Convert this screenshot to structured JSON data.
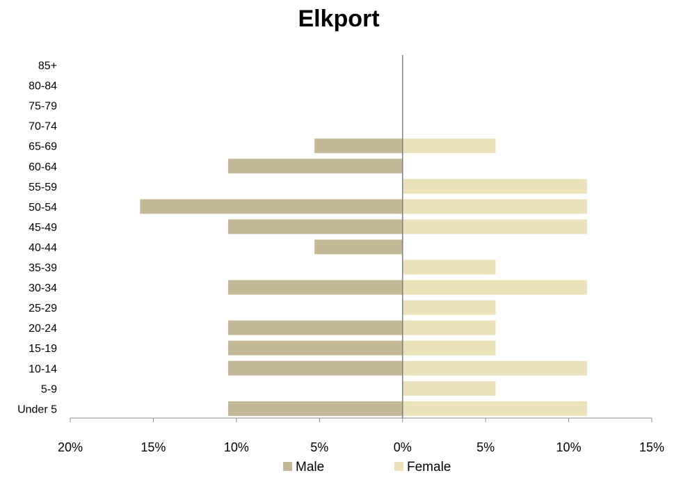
{
  "chart_data": {
    "type": "bar",
    "orientation": "horizontal",
    "title": "Elkport",
    "categories": [
      "Under 5",
      "5-9",
      "10-14",
      "15-19",
      "20-24",
      "25-29",
      "30-34",
      "35-39",
      "40-44",
      "45-49",
      "50-54",
      "55-59",
      "60-64",
      "65-69",
      "70-74",
      "75-79",
      "80-84",
      "85+"
    ],
    "series": [
      {
        "name": "Male",
        "color": "#c4b896",
        "values": [
          10.5,
          0,
          10.5,
          10.5,
          10.5,
          0,
          10.5,
          0,
          5.3,
          10.5,
          15.8,
          0,
          10.5,
          5.3,
          0,
          0,
          0,
          0
        ]
      },
      {
        "name": "Female",
        "color": "#ebe2b9",
        "values": [
          11.1,
          5.6,
          11.1,
          5.6,
          5.6,
          5.6,
          11.1,
          5.6,
          0,
          11.1,
          11.1,
          11.1,
          0,
          5.6,
          0,
          0,
          0,
          0
        ]
      }
    ],
    "xlim": [
      -20,
      15
    ],
    "xticks": [
      -20,
      -15,
      -10,
      -5,
      0,
      5,
      10,
      15
    ],
    "xtick_labels": [
      "20%",
      "15%",
      "10%",
      "5%",
      "0%",
      "5%",
      "10%",
      "15%"
    ],
    "grid": false,
    "legend_position": "bottom"
  }
}
